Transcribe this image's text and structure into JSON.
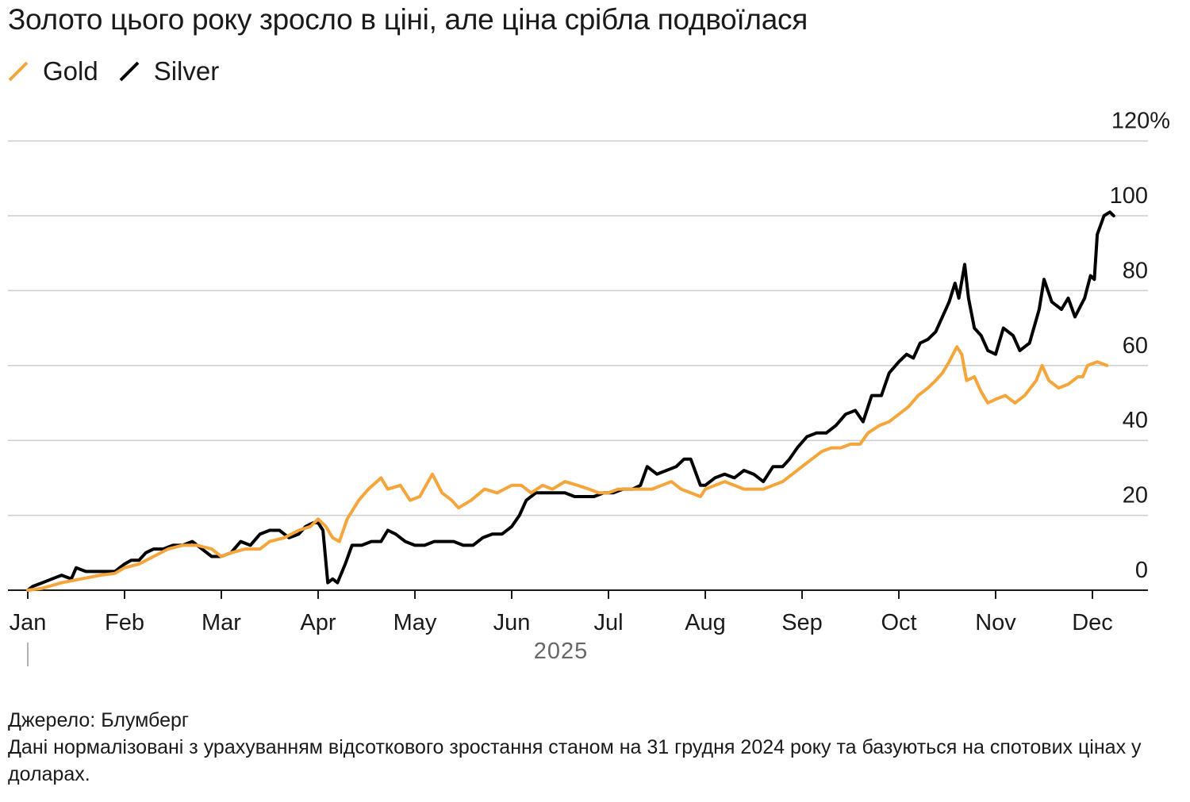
{
  "title": "Золото цього року зросло в ціні, але ціна срібла подвоїлася",
  "legend": [
    {
      "label": "Gold",
      "color": "#f4a53b"
    },
    {
      "label": "Silver",
      "color": "#000000"
    }
  ],
  "source": "Джерело: Блумберг",
  "note": "Дані нормалізовані з урахуванням відсоткового зростання станом на 31 грудня 2024 року та базуються на спотових цінах у доларах.",
  "chart_data": {
    "type": "line",
    "x_unit": "month (1 = Jan 1, 2025)",
    "xlim": [
      1,
      13
    ],
    "ylim": [
      -1,
      120
    ],
    "y_ticks": [
      0,
      20,
      40,
      60,
      80,
      100,
      120
    ],
    "y_tick_labels": [
      "0",
      "20",
      "40",
      "60",
      "80",
      "100",
      "120%"
    ],
    "x_ticks": [
      1,
      2,
      3,
      4,
      5,
      6,
      7,
      8,
      9,
      10,
      11,
      12
    ],
    "x_tick_labels": [
      "Jan",
      "Feb",
      "Mar",
      "Apr",
      "May",
      "Jun",
      "Jul",
      "Aug",
      "Sep",
      "Oct",
      "Nov",
      "Dec"
    ],
    "year_label": "2025",
    "grid": true,
    "legend_position": "top-left",
    "series": [
      {
        "name": "Gold",
        "color": "#f4a53b",
        "points": [
          [
            1.0,
            0
          ],
          [
            1.15,
            0.5
          ],
          [
            1.35,
            2
          ],
          [
            1.55,
            3
          ],
          [
            1.75,
            4
          ],
          [
            1.9,
            4.5
          ],
          [
            2.0,
            6
          ],
          [
            2.15,
            7
          ],
          [
            2.3,
            9
          ],
          [
            2.45,
            11
          ],
          [
            2.6,
            12
          ],
          [
            2.75,
            12
          ],
          [
            2.9,
            11
          ],
          [
            3.0,
            9
          ],
          [
            3.1,
            10
          ],
          [
            3.25,
            11
          ],
          [
            3.4,
            11
          ],
          [
            3.5,
            13
          ],
          [
            3.65,
            14
          ],
          [
            3.8,
            16
          ],
          [
            3.92,
            17
          ],
          [
            4.0,
            19
          ],
          [
            4.08,
            17
          ],
          [
            4.15,
            14
          ],
          [
            4.22,
            13
          ],
          [
            4.3,
            19
          ],
          [
            4.42,
            24
          ],
          [
            4.52,
            27
          ],
          [
            4.65,
            30
          ],
          [
            4.72,
            27
          ],
          [
            4.85,
            28
          ],
          [
            4.95,
            24
          ],
          [
            5.05,
            25
          ],
          [
            5.18,
            31
          ],
          [
            5.28,
            26
          ],
          [
            5.38,
            24
          ],
          [
            5.45,
            22
          ],
          [
            5.58,
            24
          ],
          [
            5.72,
            27
          ],
          [
            5.85,
            26
          ],
          [
            6.0,
            28
          ],
          [
            6.1,
            28
          ],
          [
            6.2,
            26
          ],
          [
            6.32,
            28
          ],
          [
            6.42,
            27
          ],
          [
            6.55,
            29
          ],
          [
            6.68,
            28
          ],
          [
            6.8,
            27
          ],
          [
            6.9,
            26
          ],
          [
            7.0,
            26
          ],
          [
            7.1,
            27
          ],
          [
            7.2,
            27
          ],
          [
            7.32,
            27
          ],
          [
            7.45,
            27
          ],
          [
            7.55,
            28
          ],
          [
            7.65,
            29
          ],
          [
            7.75,
            27
          ],
          [
            7.85,
            26
          ],
          [
            7.95,
            25
          ],
          [
            8.0,
            27
          ],
          [
            8.1,
            28
          ],
          [
            8.2,
            29
          ],
          [
            8.3,
            28
          ],
          [
            8.4,
            27
          ],
          [
            8.5,
            27
          ],
          [
            8.6,
            27
          ],
          [
            8.7,
            28
          ],
          [
            8.8,
            29
          ],
          [
            8.9,
            31
          ],
          [
            9.0,
            33
          ],
          [
            9.1,
            35
          ],
          [
            9.2,
            37
          ],
          [
            9.3,
            38
          ],
          [
            9.4,
            38
          ],
          [
            9.5,
            39
          ],
          [
            9.6,
            39
          ],
          [
            9.68,
            42
          ],
          [
            9.8,
            44
          ],
          [
            9.9,
            45
          ],
          [
            10.0,
            47
          ],
          [
            10.1,
            49
          ],
          [
            10.2,
            52
          ],
          [
            10.3,
            54
          ],
          [
            10.38,
            56
          ],
          [
            10.45,
            58
          ],
          [
            10.52,
            61
          ],
          [
            10.6,
            65
          ],
          [
            10.65,
            63
          ],
          [
            10.7,
            56
          ],
          [
            10.78,
            57
          ],
          [
            10.85,
            53
          ],
          [
            10.92,
            50
          ],
          [
            11.0,
            51
          ],
          [
            11.1,
            52
          ],
          [
            11.2,
            50
          ],
          [
            11.3,
            52
          ],
          [
            11.42,
            56
          ],
          [
            11.48,
            60
          ],
          [
            11.55,
            56
          ],
          [
            11.65,
            54
          ],
          [
            11.75,
            55
          ],
          [
            11.85,
            57
          ],
          [
            11.9,
            57
          ],
          [
            11.95,
            60
          ],
          [
            12.05,
            61
          ],
          [
            12.15,
            60
          ]
        ]
      },
      {
        "name": "Silver",
        "color": "#000000",
        "points": [
          [
            1.0,
            0
          ],
          [
            1.05,
            1
          ],
          [
            1.15,
            2
          ],
          [
            1.25,
            3
          ],
          [
            1.35,
            4
          ],
          [
            1.45,
            3
          ],
          [
            1.5,
            6
          ],
          [
            1.6,
            5
          ],
          [
            1.7,
            5
          ],
          [
            1.8,
            5
          ],
          [
            1.9,
            5
          ],
          [
            2.0,
            7
          ],
          [
            2.07,
            8
          ],
          [
            2.15,
            8
          ],
          [
            2.22,
            10
          ],
          [
            2.3,
            11
          ],
          [
            2.4,
            11
          ],
          [
            2.5,
            12
          ],
          [
            2.6,
            12
          ],
          [
            2.7,
            13
          ],
          [
            2.8,
            11
          ],
          [
            2.9,
            9
          ],
          [
            3.0,
            9
          ],
          [
            3.1,
            10
          ],
          [
            3.2,
            13
          ],
          [
            3.3,
            12
          ],
          [
            3.4,
            15
          ],
          [
            3.5,
            16
          ],
          [
            3.6,
            16
          ],
          [
            3.7,
            14
          ],
          [
            3.8,
            15
          ],
          [
            3.87,
            17
          ],
          [
            3.95,
            18
          ],
          [
            4.0,
            18
          ],
          [
            4.05,
            16
          ],
          [
            4.1,
            2
          ],
          [
            4.15,
            3
          ],
          [
            4.2,
            2
          ],
          [
            4.28,
            7
          ],
          [
            4.35,
            12
          ],
          [
            4.45,
            12
          ],
          [
            4.55,
            13
          ],
          [
            4.65,
            13
          ],
          [
            4.72,
            16
          ],
          [
            4.8,
            15
          ],
          [
            4.9,
            13
          ],
          [
            5.0,
            12
          ],
          [
            5.1,
            12
          ],
          [
            5.2,
            13
          ],
          [
            5.3,
            13
          ],
          [
            5.4,
            13
          ],
          [
            5.5,
            12
          ],
          [
            5.6,
            12
          ],
          [
            5.7,
            14
          ],
          [
            5.8,
            15
          ],
          [
            5.9,
            15
          ],
          [
            6.0,
            17
          ],
          [
            6.08,
            20
          ],
          [
            6.15,
            24
          ],
          [
            6.25,
            26
          ],
          [
            6.35,
            26
          ],
          [
            6.45,
            26
          ],
          [
            6.55,
            26
          ],
          [
            6.65,
            25
          ],
          [
            6.75,
            25
          ],
          [
            6.85,
            25
          ],
          [
            6.95,
            26
          ],
          [
            7.05,
            26
          ],
          [
            7.15,
            27
          ],
          [
            7.25,
            27
          ],
          [
            7.33,
            28
          ],
          [
            7.4,
            33
          ],
          [
            7.5,
            31
          ],
          [
            7.6,
            32
          ],
          [
            7.7,
            33
          ],
          [
            7.78,
            35
          ],
          [
            7.85,
            35
          ],
          [
            7.95,
            28
          ],
          [
            8.0,
            28
          ],
          [
            8.1,
            30
          ],
          [
            8.2,
            31
          ],
          [
            8.3,
            30
          ],
          [
            8.4,
            32
          ],
          [
            8.5,
            31
          ],
          [
            8.6,
            29
          ],
          [
            8.7,
            33
          ],
          [
            8.8,
            33
          ],
          [
            8.87,
            35
          ],
          [
            8.95,
            38
          ],
          [
            9.05,
            41
          ],
          [
            9.15,
            42
          ],
          [
            9.25,
            42
          ],
          [
            9.35,
            44
          ],
          [
            9.45,
            47
          ],
          [
            9.55,
            48
          ],
          [
            9.63,
            45
          ],
          [
            9.72,
            52
          ],
          [
            9.82,
            52
          ],
          [
            9.9,
            58
          ],
          [
            10.0,
            61
          ],
          [
            10.08,
            63
          ],
          [
            10.15,
            62
          ],
          [
            10.22,
            66
          ],
          [
            10.3,
            67
          ],
          [
            10.38,
            69
          ],
          [
            10.45,
            73
          ],
          [
            10.52,
            77
          ],
          [
            10.58,
            82
          ],
          [
            10.62,
            78
          ],
          [
            10.68,
            87
          ],
          [
            10.72,
            78
          ],
          [
            10.78,
            70
          ],
          [
            10.85,
            68
          ],
          [
            10.92,
            64
          ],
          [
            11.0,
            63
          ],
          [
            11.08,
            70
          ],
          [
            11.18,
            68
          ],
          [
            11.25,
            64
          ],
          [
            11.35,
            66
          ],
          [
            11.45,
            75
          ],
          [
            11.5,
            83
          ],
          [
            11.58,
            77
          ],
          [
            11.68,
            75
          ],
          [
            11.75,
            78
          ],
          [
            11.82,
            73
          ],
          [
            11.92,
            78
          ],
          [
            11.98,
            84
          ],
          [
            12.02,
            83
          ],
          [
            12.05,
            95
          ],
          [
            12.12,
            100
          ],
          [
            12.18,
            101
          ],
          [
            12.22,
            100
          ]
        ]
      }
    ]
  }
}
